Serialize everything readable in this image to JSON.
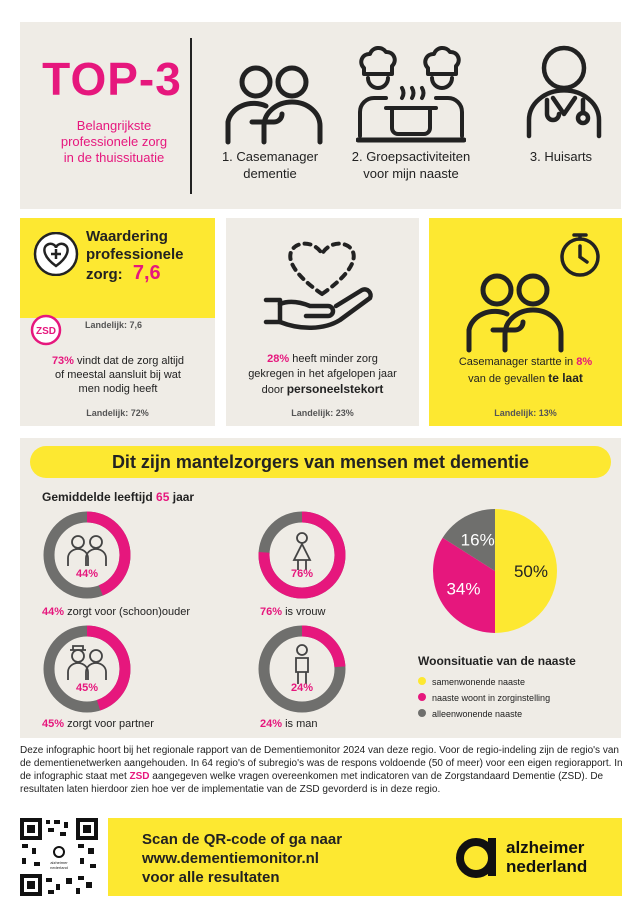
{
  "top": {
    "title": "TOP-3",
    "subtitle_lines": [
      "Belangrijkste",
      "professionele zorg",
      "in de thuissituatie"
    ],
    "items": [
      {
        "line1": "1. Casemanager",
        "line2": "dementie",
        "icon": "hugging-people-icon"
      },
      {
        "line1": "2. Groepsactiviteiten",
        "line2": "voor mijn naaste",
        "icon": "chefs-cooking-icon"
      },
      {
        "line1": "3. Huisarts",
        "line2": "",
        "icon": "doctor-icon"
      }
    ]
  },
  "card1": {
    "title_lines": [
      "Waardering",
      "professionele",
      "zorg:"
    ],
    "score": "7,6",
    "landelijk1": "Landelijk: 7,6",
    "zsd": "ZSD",
    "pct": "73%",
    "text_lines": [
      "vindt dat de zorg altijd",
      "of meestal aansluit bij wat",
      "men nodig heeft"
    ],
    "landelijk2": "Landelijk: 72%"
  },
  "card2": {
    "pct": "28%",
    "text_a": "heeft minder zorg",
    "text_b": "gekregen in het afgelopen jaar",
    "text_c": "door",
    "text_bold": "personeelstekort",
    "landelijk": "Landelijk: 23%"
  },
  "card3": {
    "text_a": "Casemanager startte in",
    "pct": "8%",
    "text_b": "van de gevallen",
    "text_bold": "te laat",
    "landelijk": "Landelijk: 13%"
  },
  "carers": {
    "title": "Dit zijn mantelzorgers van mensen met dementie",
    "age_label": "Gemiddelde leeftijd",
    "age_value": "65",
    "age_unit": "jaar",
    "donuts": [
      {
        "pct": 44,
        "label": "44%",
        "caption_pct": "44%",
        "caption": "zorgt voor (schoon)ouder",
        "icon": "elderly-couple-icon"
      },
      {
        "pct": 76,
        "label": "76%",
        "caption_pct": "76%",
        "caption": "is vrouw",
        "icon": "woman-icon"
      },
      {
        "pct": 45,
        "label": "45%",
        "caption_pct": "45%",
        "caption": "zorgt voor partner",
        "icon": "couple-icon"
      },
      {
        "pct": 24,
        "label": "24%",
        "caption_pct": "24%",
        "caption": "is man",
        "icon": "man-icon"
      }
    ]
  },
  "chart_data": {
    "type": "pie",
    "title": "Woonsituatie van de naaste",
    "categories": [
      "samenwonende naaste",
      "naaste woont in zorginstelling",
      "alleenwonende naaste"
    ],
    "values": [
      50,
      34,
      16
    ],
    "labels": [
      "50%",
      "34%",
      "16%"
    ],
    "colors": [
      "#fde831",
      "#e6177d",
      "#6f6f6d"
    ],
    "legend": "bottom"
  },
  "footnote": {
    "p1": "Deze infographic hoort bij het regionale rapport van de Dementiemonitor 2024 van deze regio. Voor de regio-indeling zijn de regio's van de dementienetwerken aangehouden. In 64 regio's of subregio's was de respons voldoende (50 of meer) voor een eigen regiorapport. In de infographic staat met",
    "zsd": "ZSD",
    "p2": "aangegeven welke vragen overeenkomen met indicatoren van de Zorgstandaard Dementie (ZSD). De resultaten laten hierdoor zien hoe ver de implementatie van de ZSD gevorderd is in deze regio."
  },
  "footer": {
    "line1": "Scan de QR-code of ga naar",
    "line2": "www.dementiemonitor.nl",
    "line3": "voor alle resultaten",
    "logo_line1": "alzheimer",
    "logo_line2": "nederland",
    "qr_center_text": "alzheimer nederland"
  }
}
